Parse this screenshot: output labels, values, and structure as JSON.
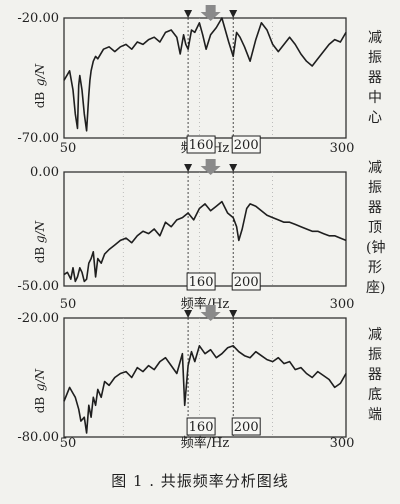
{
  "caption": "图 1 . 共振频率分析图线",
  "chart_data": [
    {
      "type": "line",
      "side_label": "减振器中心",
      "y_top_label": "-20.00",
      "y_bottom_label": "-70.00",
      "ylim": [
        -70,
        -20
      ],
      "xlim": [
        50,
        300
      ],
      "x_left_label": "50",
      "x_right_label": "300",
      "xlabel": "频率/Hz",
      "ylabel_top": "g/N",
      "ylabel_bottom": "dB",
      "markers": [
        "160",
        "200"
      ],
      "x": [
        50,
        55,
        58,
        60,
        62,
        63,
        64,
        66,
        68,
        70,
        72,
        73,
        74,
        76,
        78,
        80,
        85,
        90,
        95,
        100,
        105,
        110,
        115,
        120,
        125,
        130,
        135,
        140,
        145,
        150,
        153,
        156,
        158,
        160,
        163,
        166,
        170,
        173,
        176,
        180,
        185,
        190,
        193,
        196,
        200,
        203,
        206,
        210,
        215,
        220,
        225,
        230,
        235,
        240,
        245,
        250,
        255,
        260,
        265,
        270,
        275,
        280,
        285,
        290,
        295,
        300
      ],
      "y": [
        -46,
        -42,
        -50,
        -60,
        -66,
        -48,
        -44,
        -50,
        -60,
        -67,
        -52,
        -46,
        -42,
        -38,
        -36,
        -37,
        -33,
        -32,
        -34,
        -32,
        -31,
        -33,
        -30,
        -31,
        -29,
        -28,
        -30,
        -26,
        -25,
        -28,
        -35,
        -27,
        -31,
        -33,
        -25,
        -26,
        -22,
        -27,
        -33,
        -27,
        -24,
        -20,
        -25,
        -30,
        -36,
        -26,
        -28,
        -32,
        -38,
        -29,
        -22,
        -25,
        -31,
        -34,
        -31,
        -28,
        -31,
        -35,
        -38,
        -40,
        -37,
        -34,
        -31,
        -29,
        -30,
        -26
      ]
    },
    {
      "type": "line",
      "side_label": "减振器顶(钟形座)",
      "y_top_label": "0.00",
      "y_bottom_label": "-50.00",
      "ylim": [
        -50,
        0
      ],
      "xlim": [
        50,
        300
      ],
      "x_left_label": "50",
      "x_right_label": "300",
      "xlabel": "频率/Hz",
      "ylabel_top": "g/N",
      "ylabel_bottom": "dB",
      "markers": [
        "160",
        "200"
      ],
      "x": [
        50,
        53,
        56,
        58,
        60,
        62,
        64,
        66,
        68,
        70,
        72,
        74,
        76,
        78,
        80,
        83,
        86,
        90,
        95,
        100,
        105,
        110,
        115,
        120,
        125,
        130,
        135,
        140,
        145,
        150,
        155,
        160,
        165,
        170,
        175,
        180,
        185,
        190,
        195,
        200,
        203,
        205,
        208,
        212,
        215,
        220,
        225,
        230,
        235,
        240,
        245,
        250,
        255,
        260,
        265,
        270,
        275,
        280,
        285,
        290,
        295,
        300
      ],
      "y": [
        -45,
        -44,
        -47,
        -42,
        -48,
        -46,
        -42,
        -44,
        -48,
        -47,
        -40,
        -38,
        -35,
        -46,
        -38,
        -40,
        -36,
        -34,
        -32,
        -30,
        -29,
        -31,
        -28,
        -26,
        -27,
        -25,
        -28,
        -22,
        -24,
        -21,
        -20,
        -18,
        -21,
        -16,
        -14,
        -17,
        -15,
        -13,
        -18,
        -20,
        -24,
        -30,
        -25,
        -16,
        -14,
        -15,
        -17,
        -19,
        -20,
        -21,
        -22,
        -22,
        -23,
        -24,
        -25,
        -26,
        -26,
        -27,
        -28,
        -28,
        -29,
        -30
      ]
    },
    {
      "type": "line",
      "side_label": "减振器底端",
      "y_top_label": "-20.00",
      "y_bottom_label": "-80.00",
      "ylim": [
        -80,
        -20
      ],
      "xlim": [
        50,
        300
      ],
      "x_left_label": "50",
      "x_right_label": "300",
      "xlabel": "频率/Hz",
      "ylabel_top": "g/N",
      "ylabel_bottom": "dB",
      "markers": [
        "160",
        "200"
      ],
      "x": [
        50,
        55,
        58,
        60,
        63,
        65,
        68,
        70,
        72,
        74,
        76,
        78,
        80,
        83,
        86,
        90,
        95,
        100,
        105,
        110,
        115,
        120,
        125,
        130,
        135,
        140,
        145,
        150,
        155,
        157,
        160,
        163,
        166,
        170,
        175,
        180,
        185,
        190,
        195,
        200,
        205,
        210,
        215,
        220,
        225,
        230,
        235,
        240,
        245,
        250,
        255,
        260,
        265,
        270,
        275,
        280,
        285,
        290,
        295,
        300
      ],
      "y": [
        -62,
        -55,
        -58,
        -60,
        -66,
        -72,
        -70,
        -78,
        -64,
        -70,
        -60,
        -64,
        -56,
        -60,
        -52,
        -54,
        -50,
        -48,
        -47,
        -50,
        -45,
        -47,
        -44,
        -46,
        -42,
        -40,
        -44,
        -48,
        -38,
        -64,
        -44,
        -37,
        -42,
        -34,
        -38,
        -36,
        -40,
        -38,
        -35,
        -34,
        -37,
        -39,
        -40,
        -37,
        -39,
        -41,
        -42,
        -40,
        -43,
        -42,
        -46,
        -45,
        -48,
        -50,
        -47,
        -49,
        -51,
        -55,
        -53,
        -48
      ]
    }
  ]
}
